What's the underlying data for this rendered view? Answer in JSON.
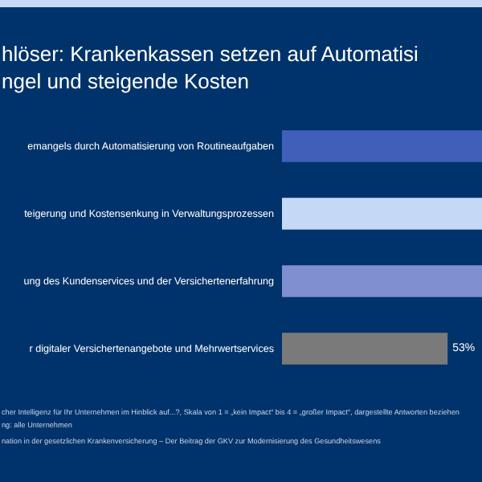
{
  "chart_data": {
    "type": "bar",
    "orientation": "horizontal",
    "title": "hlöser: Krankenkassen setzen auf Automatisi\nngel und steigende Kosten",
    "categories": [
      "emangels durch Automatisierung von Routineaufgaben",
      "teigerung und Kostensenkung in Verwaltungsprozessen",
      "ung des Kundenservices und der Versichertenerfahrung",
      "r digitaler Versichertenangebote und Mehrwertservices"
    ],
    "values": [
      64,
      64,
      64,
      53
    ],
    "colors": [
      "#3f5fb8",
      "#c5d8f5",
      "#7f8fd0",
      "#7a7a7a"
    ],
    "value_labels": [
      null,
      null,
      null,
      "53%"
    ],
    "xlim": [
      0,
      64
    ],
    "annotations": [
      "cher Intelligenz für Ihr Unternehmen im Hinblick auf...?, Skala von 1 = „kein Impact“ bis 4 = „großer Impact“, dargestellte Antworten beziehen",
      "ng: alle Unternehmen",
      "nation in der gesetzlichen Krankenversicherung – Der Beitrag der GKV zur Modernisierung des Gesundheitswesens"
    ],
    "legend": false,
    "grid": false
  }
}
